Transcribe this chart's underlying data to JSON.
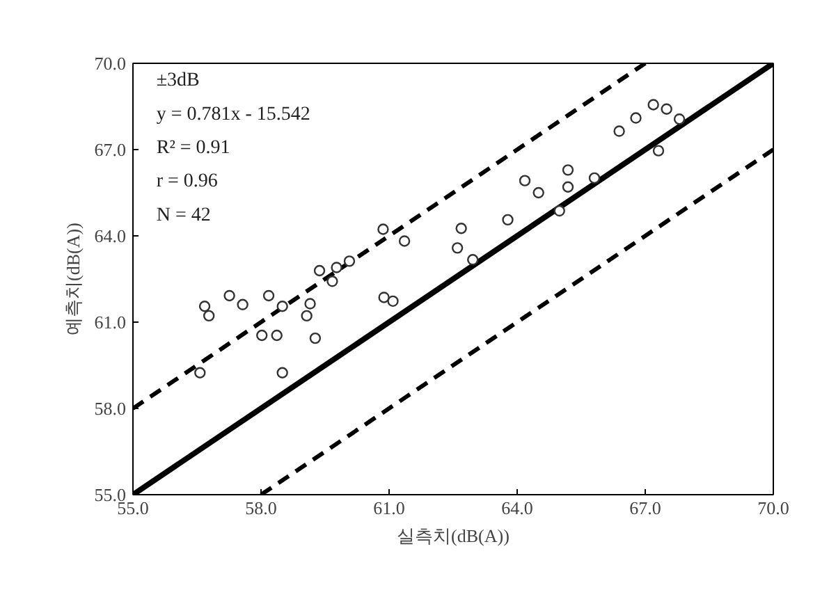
{
  "chart_data": {
    "type": "scatter",
    "xlabel": "실측치(dB(A))",
    "ylabel": "예측치(dB(A))",
    "annotations": [
      "±3dB",
      "y = 0.781x - 15.542",
      "R² = 0.91",
      "r = 0.96",
      "N = 42"
    ],
    "xlim": [
      55,
      70
    ],
    "ylim": [
      55,
      70
    ],
    "xticks": [
      {
        "value": 55,
        "label": "55.0"
      },
      {
        "value": 58,
        "label": "58.0"
      },
      {
        "value": 61,
        "label": "61.0"
      },
      {
        "value": 64,
        "label": "64.0"
      },
      {
        "value": 67,
        "label": "67.0"
      },
      {
        "value": 70,
        "label": "70.0"
      }
    ],
    "yticks": [
      {
        "value": 55,
        "label": "55.0"
      },
      {
        "value": 58,
        "label": "58.0"
      },
      {
        "value": 61,
        "label": "61.0"
      },
      {
        "value": 64,
        "label": "64.0"
      },
      {
        "value": 67,
        "label": "67.0"
      },
      {
        "value": 70,
        "label": "70.0"
      }
    ],
    "grid": false,
    "series": [
      {
        "marker": "circle",
        "color": "#333333",
        "x": [
          56.57,
          56.68,
          56.78,
          57.26,
          57.57,
          58.02,
          58.18,
          58.37,
          58.5,
          58.5,
          59.07,
          59.15,
          59.27,
          59.37,
          59.67,
          59.77,
          60.07,
          60.86,
          60.88,
          61.09,
          61.36,
          62.6,
          62.69,
          62.96,
          63.78,
          64.18,
          64.5,
          64.99,
          65.19,
          65.19,
          65.81,
          66.39,
          66.78,
          67.19,
          67.31,
          67.5,
          67.8
        ],
        "values": [
          59.24,
          61.55,
          61.22,
          61.92,
          61.61,
          60.54,
          61.92,
          60.54,
          61.55,
          59.24,
          61.22,
          61.64,
          60.44,
          62.79,
          62.42,
          62.9,
          63.12,
          64.23,
          61.86,
          61.73,
          63.82,
          63.58,
          64.26,
          63.17,
          64.56,
          65.92,
          65.5,
          64.87,
          66.29,
          65.7,
          66.01,
          67.64,
          68.1,
          68.56,
          66.96,
          68.41,
          68.06
        ]
      },
      {
        "type": "line",
        "line_style": "solid",
        "color": "#000000",
        "x": [
          55,
          70
        ],
        "values": [
          55,
          70
        ]
      },
      {
        "type": "line",
        "line_style": "dashed",
        "color": "#000000",
        "x": [
          55,
          67
        ],
        "values": [
          58,
          70
        ]
      },
      {
        "type": "line",
        "line_style": "dashed",
        "color": "#000000",
        "x": [
          58,
          70
        ],
        "values": [
          55,
          67
        ]
      }
    ]
  }
}
